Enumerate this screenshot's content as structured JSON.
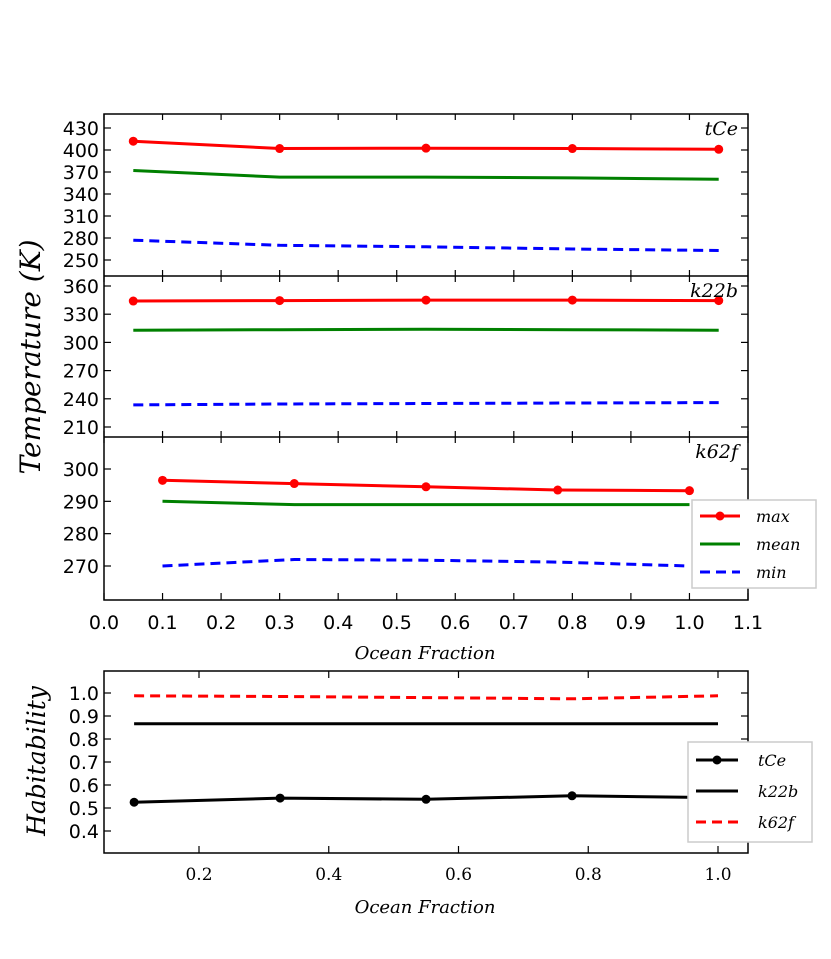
{
  "colors": {
    "max": "#ff0000",
    "mean": "#008000",
    "min": "#0000ff",
    "tCe": "#000000",
    "k22b": "#000000",
    "k62f": "#ff0000"
  },
  "chart_data": [
    {
      "type": "line",
      "panel": "tCe",
      "annotation": "tCe",
      "ylabel": "Temperature (K)",
      "yticks": [
        250,
        280,
        310,
        340,
        370,
        400,
        430
      ],
      "ylim": [
        232,
        440
      ],
      "xlim": [
        0.0,
        1.1
      ],
      "series": [
        {
          "name": "max",
          "x": [
            0.05,
            0.3,
            0.55,
            0.8,
            1.05
          ],
          "y": [
            412,
            402,
            402.5,
            402,
            401
          ],
          "style": "solid-marker",
          "color": "#ff0000"
        },
        {
          "name": "mean",
          "x": [
            0.05,
            0.3,
            0.55,
            0.8,
            1.05
          ],
          "y": [
            372,
            363,
            363,
            362,
            360
          ],
          "style": "solid",
          "color": "#008000"
        },
        {
          "name": "min",
          "x": [
            0.05,
            0.3,
            0.55,
            0.8,
            1.05
          ],
          "y": [
            277,
            270,
            268,
            265,
            263
          ],
          "style": "dashed",
          "color": "#0000ff"
        }
      ]
    },
    {
      "type": "line",
      "panel": "k22b",
      "annotation": "k22b",
      "yticks": [
        210,
        240,
        270,
        300,
        330,
        360
      ],
      "ylim": [
        200,
        365
      ],
      "xlim": [
        0.0,
        1.1
      ],
      "series": [
        {
          "name": "max",
          "x": [
            0.05,
            0.3,
            0.55,
            0.8,
            1.05
          ],
          "y": [
            344,
            344.5,
            345,
            345,
            344.5
          ],
          "style": "solid-marker",
          "color": "#ff0000"
        },
        {
          "name": "mean",
          "x": [
            0.05,
            0.3,
            0.55,
            0.8,
            1.05
          ],
          "y": [
            313,
            313.5,
            314,
            313.5,
            313
          ],
          "style": "solid",
          "color": "#008000"
        },
        {
          "name": "min",
          "x": [
            0.05,
            0.3,
            0.55,
            0.8,
            1.05
          ],
          "y": [
            233.5,
            234.5,
            235,
            235.5,
            236
          ],
          "style": "dashed",
          "color": "#0000ff"
        }
      ]
    },
    {
      "type": "line",
      "panel": "k62f",
      "annotation": "k62f",
      "xlabel": "Ocean Fraction",
      "yticks": [
        270,
        280,
        290,
        300
      ],
      "xticks": [
        "0.0",
        "0.1",
        "0.2",
        "0.3",
        "0.4",
        "0.5",
        "0.6",
        "0.7",
        "0.8",
        "0.9",
        "1.0",
        "1.1"
      ],
      "ylim": [
        260,
        305
      ],
      "xlim": [
        0.0,
        1.1
      ],
      "series": [
        {
          "name": "max",
          "x": [
            0.1,
            0.325,
            0.55,
            0.775,
            1.0
          ],
          "y": [
            296.5,
            295.5,
            294.5,
            293.5,
            293.3
          ],
          "style": "solid-marker",
          "color": "#ff0000"
        },
        {
          "name": "mean",
          "x": [
            0.1,
            0.325,
            0.55,
            0.775,
            1.0
          ],
          "y": [
            290,
            289,
            289,
            289,
            289
          ],
          "style": "solid",
          "color": "#008000"
        },
        {
          "name": "min",
          "x": [
            0.1,
            0.325,
            0.55,
            0.775,
            1.0
          ],
          "y": [
            270,
            272,
            271.8,
            271.2,
            270
          ],
          "style": "dashed",
          "color": "#0000ff"
        }
      ],
      "legend": {
        "placement": "right",
        "entries": [
          "max",
          "mean",
          "min"
        ]
      }
    },
    {
      "type": "line",
      "panel": "habitability",
      "xlabel": "Ocean Fraction",
      "ylabel": "Habitability",
      "yticks": [
        "0.4",
        "0.5",
        "0.6",
        "0.7",
        "0.8",
        "0.9",
        "1.0"
      ],
      "xticks": [
        "0.2",
        "0.4",
        "0.6",
        "0.8",
        "1.0"
      ],
      "ylim": [
        0.3,
        1.1
      ],
      "xlim": [
        0.05,
        1.045
      ],
      "series": [
        {
          "name": "tCe",
          "x": [
            0.1,
            0.325,
            0.55,
            0.775,
            1.0
          ],
          "y": [
            0.525,
            0.543,
            0.538,
            0.553,
            0.545
          ],
          "style": "solid-marker",
          "color": "#000000"
        },
        {
          "name": "k22b",
          "x": [
            0.1,
            0.325,
            0.55,
            0.775,
            1.0
          ],
          "y": [
            0.866,
            0.866,
            0.866,
            0.866,
            0.866
          ],
          "style": "solid",
          "color": "#000000"
        },
        {
          "name": "k62f",
          "x": [
            0.1,
            0.325,
            0.55,
            0.775,
            1.0
          ],
          "y": [
            0.988,
            0.985,
            0.98,
            0.975,
            0.988
          ],
          "style": "dashed",
          "color": "#ff0000"
        }
      ],
      "legend": {
        "placement": "right",
        "entries": [
          "tCe",
          "k22b",
          "k62f"
        ]
      }
    }
  ]
}
